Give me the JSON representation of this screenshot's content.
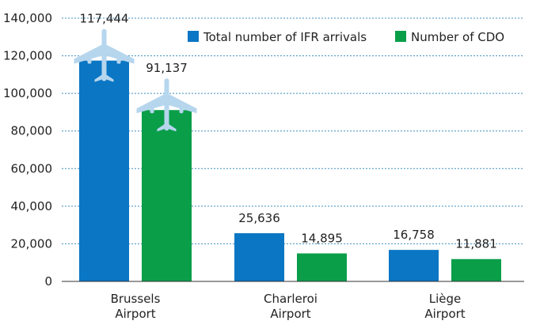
{
  "chart_data": {
    "type": "bar",
    "title": "",
    "xlabel": "",
    "ylabel": "",
    "ylim": [
      0,
      140000
    ],
    "y_ticks": [
      0,
      20000,
      40000,
      60000,
      80000,
      100000,
      120000,
      140000
    ],
    "y_tick_labels": [
      "0",
      "20,000",
      "40,000",
      "60,000",
      "80,000",
      "100,000",
      "120,000",
      "140,000"
    ],
    "grid": true,
    "legend_position": "top-right",
    "categories": [
      [
        "Brussels",
        "Airport"
      ],
      [
        "Charleroi",
        "Airport"
      ],
      [
        "Liège",
        "Airport"
      ]
    ],
    "series": [
      {
        "name": "Total number of IFR arrivals",
        "color": "#0a76c4",
        "values": [
          117444,
          25636,
          16758
        ],
        "labels": [
          "117,444",
          "25,636",
          "16,758"
        ]
      },
      {
        "name": "Number of CDO",
        "color": "#0a9e49",
        "values": [
          91137,
          14895,
          11881
        ],
        "labels": [
          "91,137",
          "14,895",
          "11,881"
        ]
      }
    ],
    "plane_icon_color": "#b6d6ee",
    "grid_color": "#3f8fbf",
    "axis_color": "#333333"
  }
}
